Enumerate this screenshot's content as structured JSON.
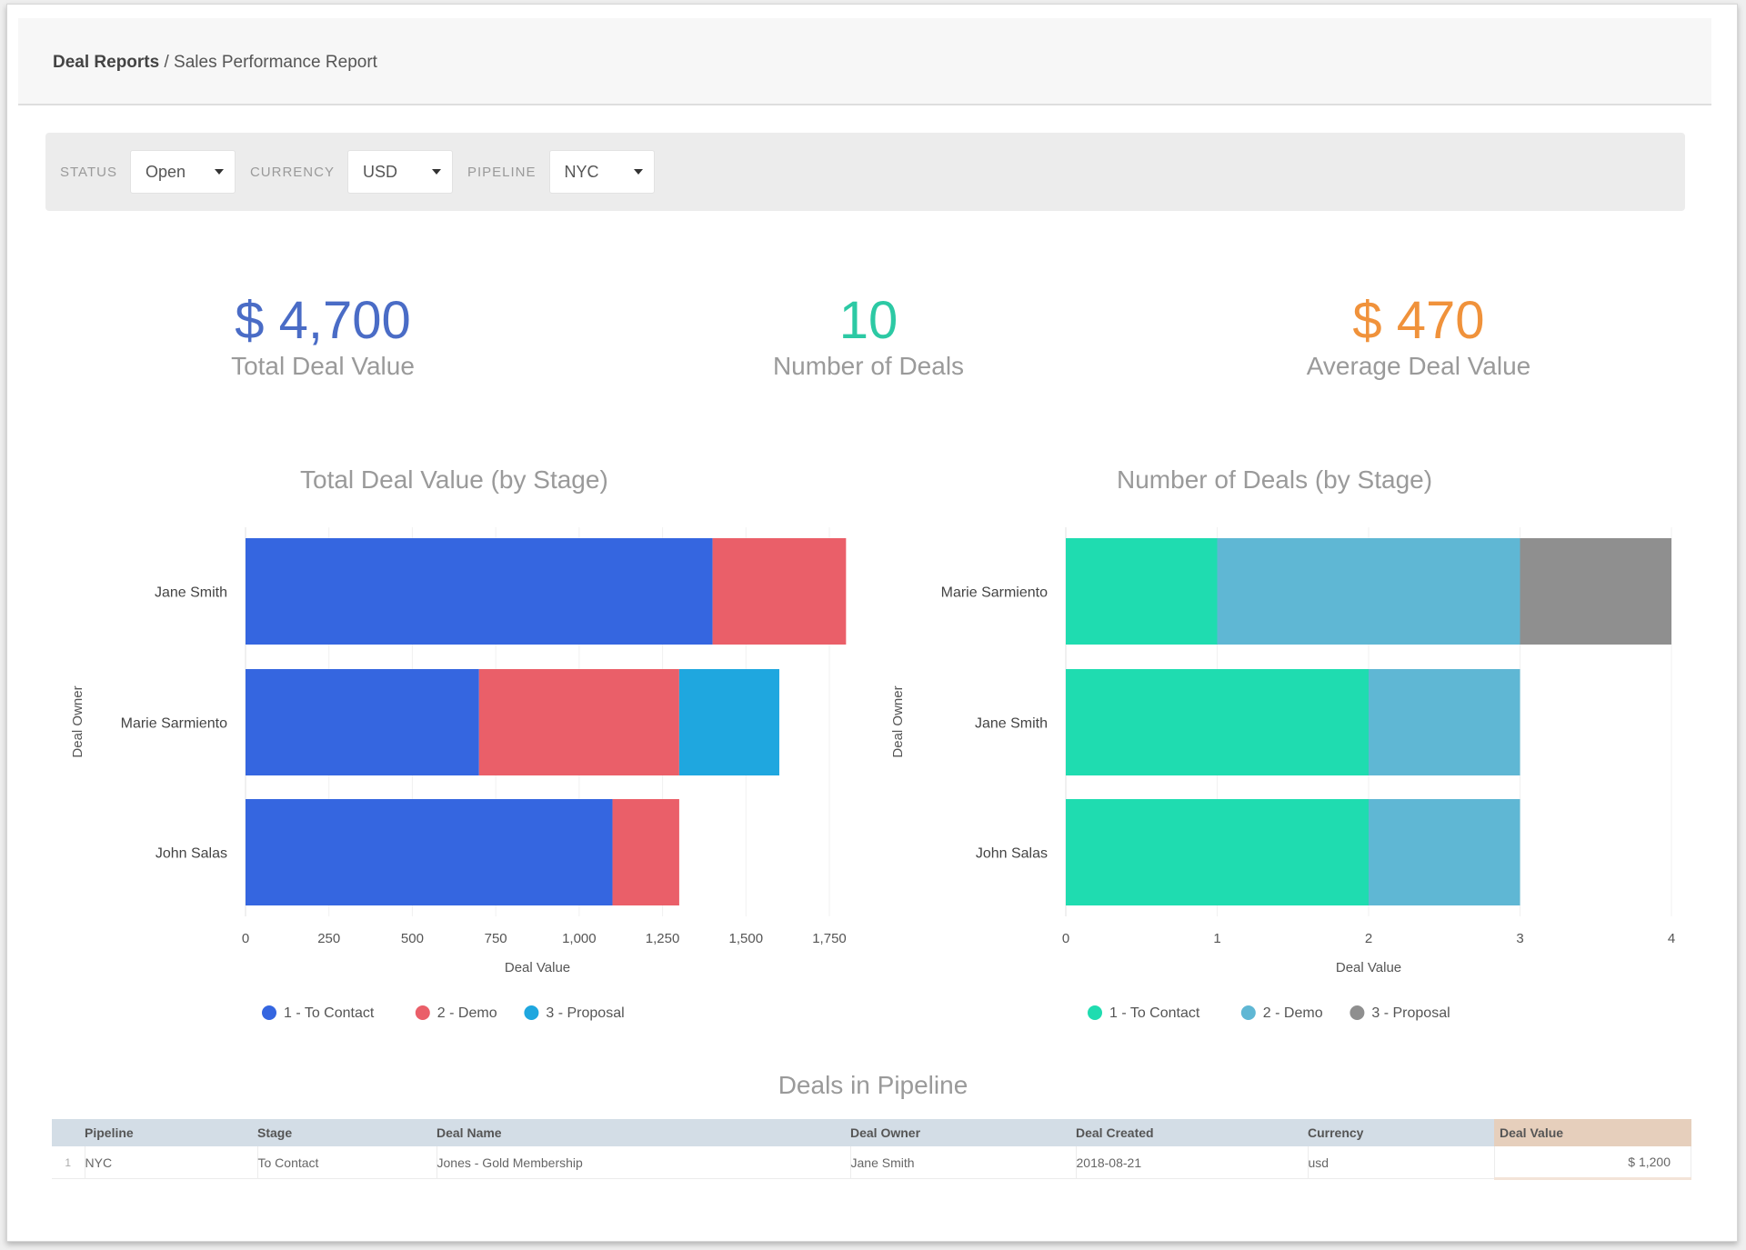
{
  "breadcrumb": {
    "root": "Deal Reports",
    "separator": " / ",
    "current": "Sales Performance Report"
  },
  "filters": [
    {
      "label": "STATUS",
      "value": "Open"
    },
    {
      "label": "CURRENCY",
      "value": "USD"
    },
    {
      "label": "PIPELINE",
      "value": "NYC"
    }
  ],
  "kpis": [
    {
      "value": "$ 4,700",
      "label": "Total Deal Value",
      "color": "#4a6cc6"
    },
    {
      "value": "10",
      "label": "Number of Deals",
      "color": "#2cc9a4"
    },
    {
      "value": "$ 470",
      "label": "Average Deal Value",
      "color": "#f0923b"
    }
  ],
  "chart_data": [
    {
      "type": "bar",
      "orientation": "horizontal",
      "stacked": true,
      "title": "Total Deal Value (by Stage)",
      "xlabel": "Deal Value",
      "ylabel": "Deal Owner",
      "categories": [
        "Jane Smith",
        "Marie Sarmiento",
        "John Salas"
      ],
      "series": [
        {
          "name": "1 - To Contact",
          "color": "#3566e0",
          "values": [
            1400,
            700,
            1100
          ]
        },
        {
          "name": "2 - Demo",
          "color": "#ea5f69",
          "values": [
            400,
            600,
            200
          ]
        },
        {
          "name": "3 - Proposal",
          "color": "#1fa7df",
          "values": [
            0,
            300,
            0
          ]
        }
      ],
      "xlim": [
        0,
        1800
      ],
      "xticks": [
        0,
        250,
        500,
        750,
        1000,
        1250,
        1500,
        1750
      ],
      "xtick_labels": [
        "0",
        "250",
        "500",
        "750",
        "1,000",
        "1,250",
        "1,500",
        "1,750"
      ],
      "grid": true,
      "legend_position": "bottom"
    },
    {
      "type": "bar",
      "orientation": "horizontal",
      "stacked": true,
      "title": "Number of Deals (by Stage)",
      "xlabel": "Deal Value",
      "ylabel": "Deal Owner",
      "categories": [
        "Marie Sarmiento",
        "Jane Smith",
        "John Salas"
      ],
      "series": [
        {
          "name": "1 - To Contact",
          "color": "#1fdcb0",
          "values": [
            1,
            2,
            2
          ]
        },
        {
          "name": "2 - Demo",
          "color": "#5fb7d4",
          "values": [
            2,
            1,
            1
          ]
        },
        {
          "name": "3 - Proposal",
          "color": "#8f8f8f",
          "values": [
            1,
            0,
            0
          ]
        }
      ],
      "xlim": [
        0,
        4
      ],
      "xticks": [
        0,
        1,
        2,
        3,
        4
      ],
      "xtick_labels": [
        "0",
        "1",
        "2",
        "3",
        "4"
      ],
      "grid": true,
      "legend_position": "bottom"
    }
  ],
  "table": {
    "title": "Deals in Pipeline",
    "columns": [
      "Pipeline",
      "Stage",
      "Deal Name",
      "Deal Owner",
      "Deal Created",
      "Currency",
      "Deal Value"
    ],
    "rows": [
      {
        "index": "1",
        "cells": [
          "NYC",
          "To Contact",
          "Jones - Gold Membership",
          "Jane Smith",
          "2018-08-21",
          "usd",
          "$ 1,200"
        ]
      }
    ]
  }
}
